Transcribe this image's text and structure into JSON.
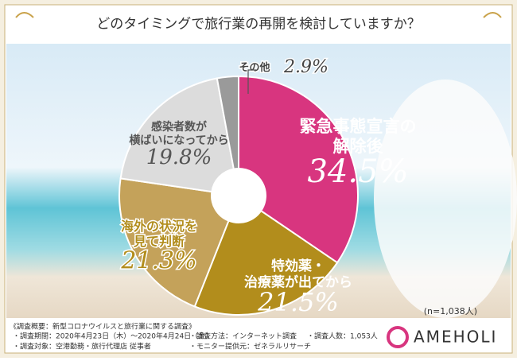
{
  "chart_data": {
    "type": "pie",
    "title": "どのタイミングで旅行業の再開を検討していますか？",
    "categories": [
      "緊急事態宣言の\n解除後",
      "特効薬・\n治療薬が出てから",
      "海外の状況を\n見て判断",
      "感染者数が\n横ばいになってから",
      "その他"
    ],
    "values": [
      34.5,
      21.5,
      21.3,
      19.8,
      2.9
    ],
    "value_labels": [
      "34.5%",
      "21.5%",
      "21.3%",
      "19.8%",
      "2.9%"
    ],
    "colors": [
      "#d8357f",
      "#b28d1c",
      "#c4a25a",
      "#dcdcdc",
      "#9a9a9a"
    ],
    "note": "(n=1,038人)"
  },
  "footer": {
    "survey_title": "《調査概要：新型コロナウイルスと旅行業に関する調査》",
    "items": [
      "・調査期間：2020年4月23日（木）～2020年4月24日（金）",
      "・調査方法：インターネット調査",
      "・調査人数：1,053人",
      "・調査対象：空港勤務・旅行代理店 従事者",
      "・モニター提供元：ゼネラルリサーチ"
    ],
    "logo": "AMEHOLI"
  }
}
